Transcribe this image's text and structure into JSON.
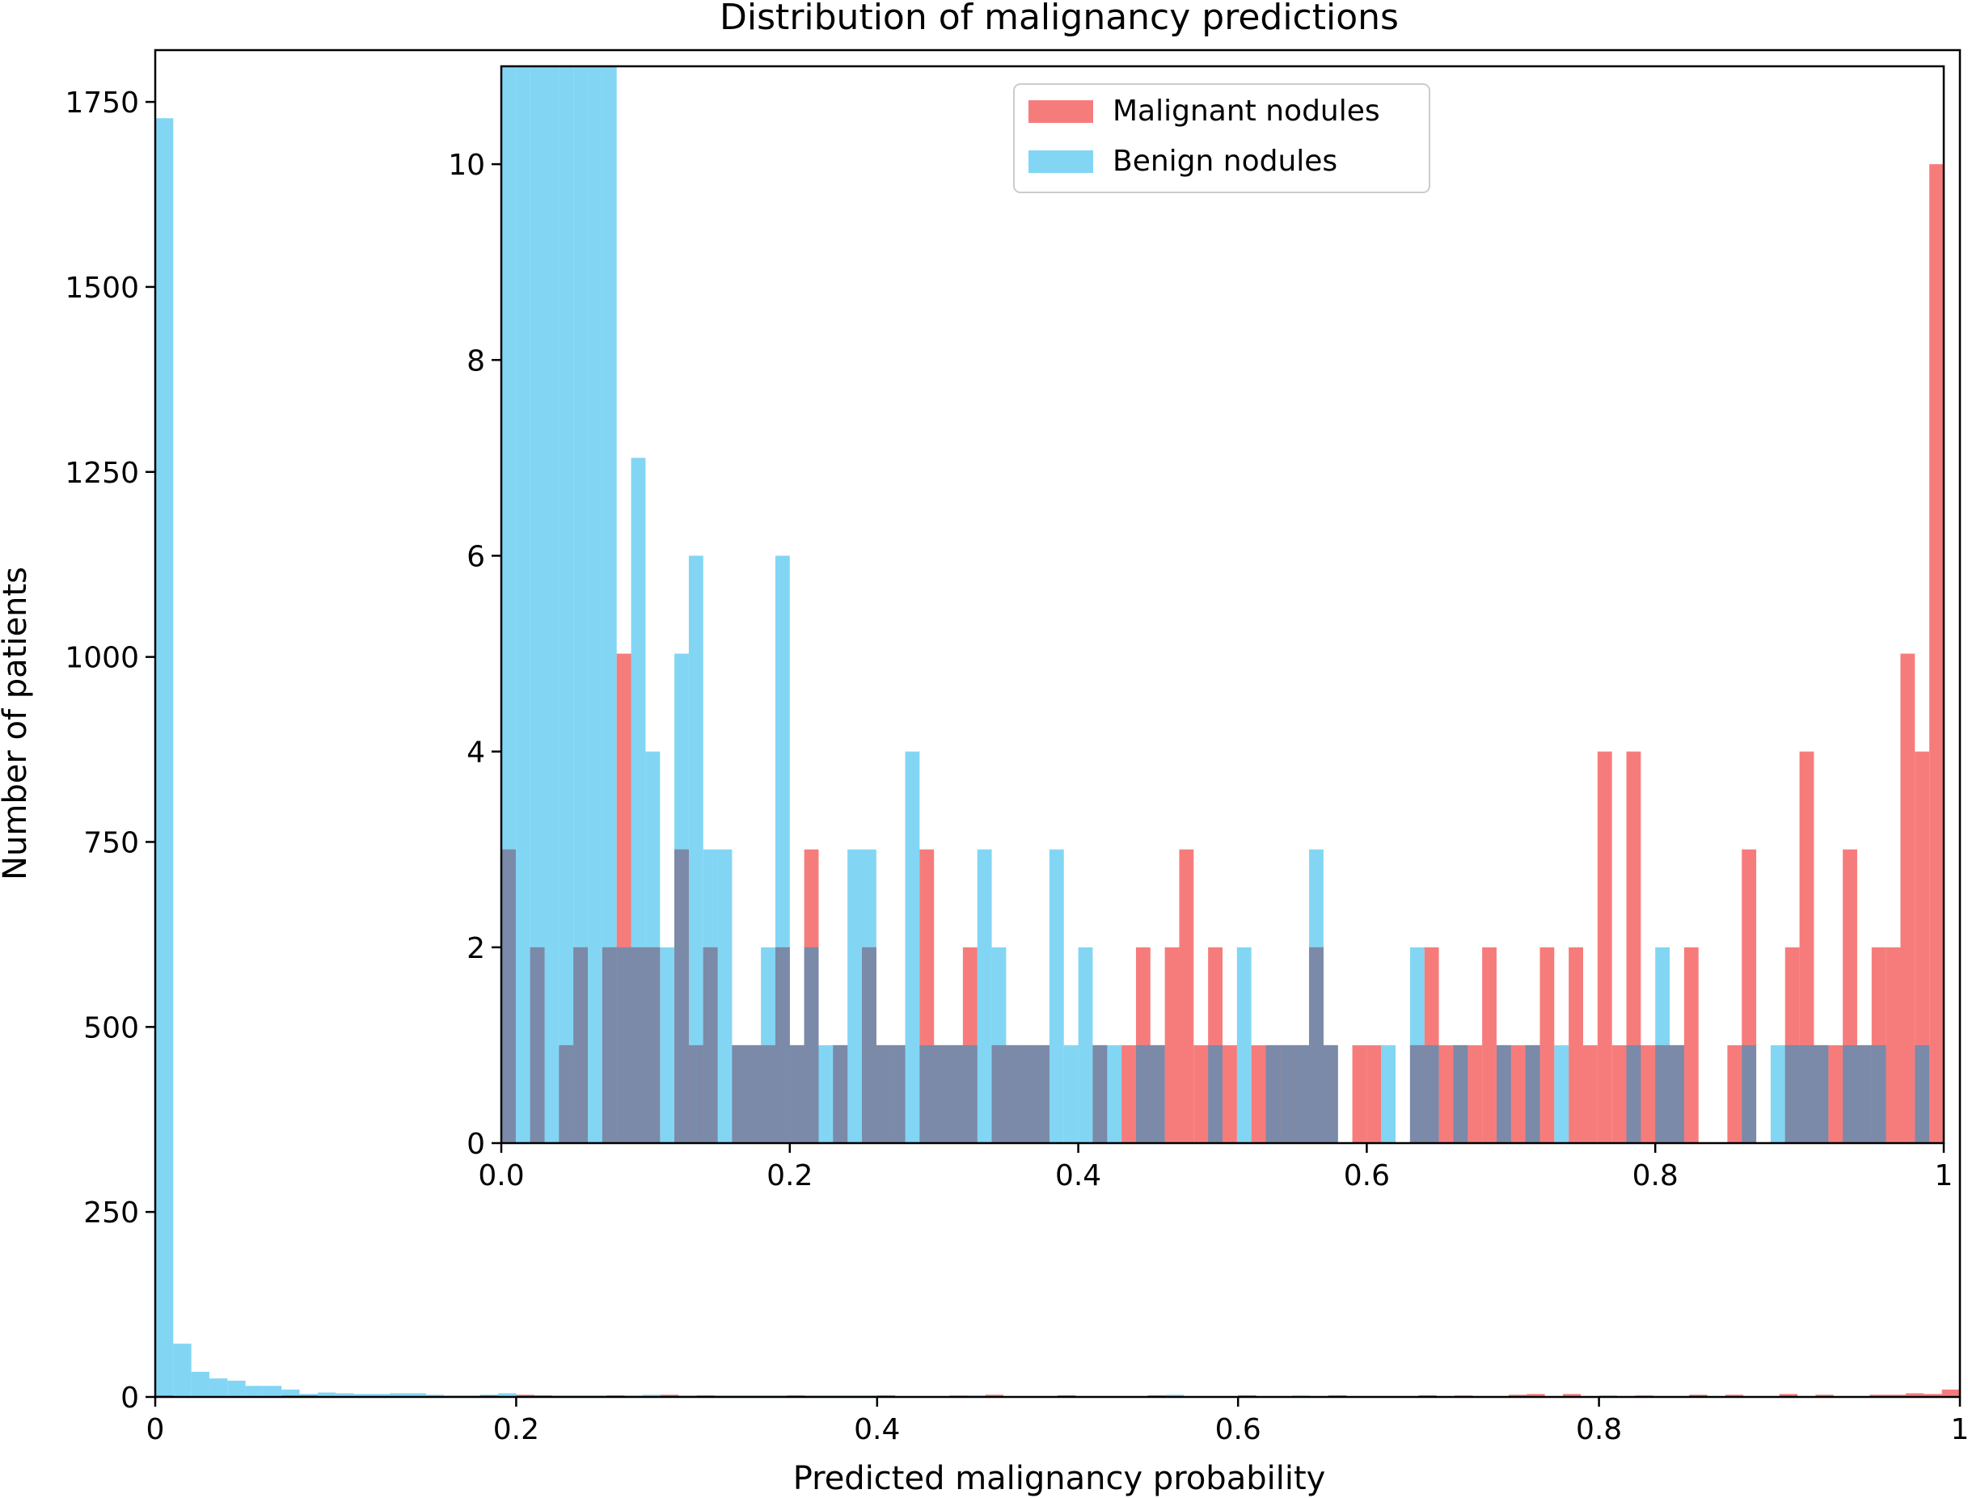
{
  "chart_data": [
    {
      "type": "bar",
      "role": "main",
      "title": "Distribution of malignancy predictions",
      "xlabel": "Predicted malignancy probability",
      "ylabel": "Number of patients",
      "xlim": [
        0,
        1
      ],
      "ylim": [
        0,
        1820
      ],
      "xticks": [
        0,
        0.2,
        0.4,
        0.6,
        0.8,
        1
      ],
      "xtick_labels": [
        "0",
        "0.2",
        "0.4",
        "0.6",
        "0.8",
        "1"
      ],
      "yticks": [
        0,
        250,
        500,
        750,
        1000,
        1250,
        1500,
        1750
      ],
      "ytick_labels": [
        "0",
        "250",
        "500",
        "750",
        "1000",
        "1250",
        "1500",
        "1750"
      ],
      "grid": false,
      "bin_width": 0.01,
      "series": [
        {
          "name": "Benign nodules",
          "color": "#6ccff2",
          "bins": [
            [
              0.0,
              1728
            ],
            [
              0.01,
              72
            ],
            [
              0.02,
              34
            ],
            [
              0.03,
              25
            ],
            [
              0.04,
              22
            ],
            [
              0.05,
              15
            ],
            [
              0.06,
              15
            ],
            [
              0.07,
              10
            ],
            [
              0.08,
              4
            ],
            [
              0.09,
              6
            ],
            [
              0.1,
              5
            ],
            [
              0.11,
              4
            ],
            [
              0.12,
              4
            ],
            [
              0.13,
              5
            ],
            [
              0.14,
              5
            ],
            [
              0.15,
              3
            ],
            [
              0.16,
              2
            ],
            [
              0.17,
              2
            ],
            [
              0.18,
              3
            ],
            [
              0.19,
              5
            ],
            [
              0.2,
              2
            ],
            [
              0.21,
              2
            ],
            [
              0.22,
              2
            ],
            [
              0.23,
              2
            ],
            [
              0.24,
              2
            ],
            [
              0.25,
              2
            ],
            [
              0.26,
              2
            ],
            [
              0.27,
              3
            ],
            [
              0.28,
              2
            ],
            [
              0.29,
              2
            ],
            [
              0.3,
              2
            ],
            [
              0.31,
              2
            ],
            [
              0.32,
              2
            ],
            [
              0.33,
              2
            ],
            [
              0.34,
              2
            ],
            [
              0.35,
              2
            ],
            [
              0.36,
              2
            ],
            [
              0.37,
              2
            ],
            [
              0.38,
              2
            ],
            [
              0.39,
              2
            ],
            [
              0.4,
              2
            ],
            [
              0.45,
              2
            ],
            [
              0.5,
              2
            ],
            [
              0.55,
              2
            ],
            [
              0.56,
              3
            ],
            [
              0.6,
              2
            ],
            [
              0.63,
              2
            ],
            [
              0.65,
              2
            ],
            [
              0.7,
              2
            ],
            [
              0.8,
              2
            ],
            [
              0.85,
              2
            ],
            [
              0.9,
              2
            ]
          ]
        },
        {
          "name": "Malignant nodules",
          "color": "#f56565",
          "bins": [
            [
              0.0,
              2
            ],
            [
              0.07,
              2
            ],
            [
              0.08,
              2
            ],
            [
              0.18,
              2
            ],
            [
              0.2,
              3
            ],
            [
              0.21,
              2
            ],
            [
              0.25,
              2
            ],
            [
              0.28,
              3
            ],
            [
              0.3,
              2
            ],
            [
              0.35,
              2
            ],
            [
              0.4,
              2
            ],
            [
              0.44,
              2
            ],
            [
              0.46,
              3
            ],
            [
              0.5,
              2
            ],
            [
              0.55,
              2
            ],
            [
              0.6,
              2
            ],
            [
              0.65,
              2
            ],
            [
              0.7,
              2
            ],
            [
              0.72,
              2
            ],
            [
              0.75,
              3
            ],
            [
              0.76,
              4
            ],
            [
              0.78,
              4
            ],
            [
              0.82,
              2
            ],
            [
              0.85,
              3
            ],
            [
              0.87,
              3
            ],
            [
              0.9,
              4
            ],
            [
              0.92,
              3
            ],
            [
              0.95,
              3
            ],
            [
              0.96,
              3
            ],
            [
              0.97,
              5
            ],
            [
              0.98,
              4
            ],
            [
              0.99,
              10
            ]
          ]
        }
      ]
    },
    {
      "type": "bar",
      "role": "inset",
      "xlim": [
        0,
        1
      ],
      "ylim": [
        0,
        11
      ],
      "xticks": [
        0,
        0.2,
        0.4,
        0.6,
        0.8,
        1
      ],
      "xtick_labels": [
        "0.0",
        "0.2",
        "0.4",
        "0.6",
        "0.8",
        "1"
      ],
      "yticks": [
        0,
        2,
        4,
        6,
        8,
        10
      ],
      "ytick_labels": [
        "0",
        "2",
        "4",
        "6",
        "8",
        "10"
      ],
      "legend": {
        "placement": "upper-center",
        "entries": [
          {
            "label": "Malignant nodules",
            "color": "#f56565"
          },
          {
            "label": "Benign nodules",
            "color": "#6ccff2"
          }
        ]
      },
      "bin_width": 0.01,
      "series": [
        {
          "name": "Benign nodules",
          "color": "#6ccff2",
          "bins": [
            [
              0.0,
              12
            ],
            [
              0.01,
              12
            ],
            [
              0.02,
              12
            ],
            [
              0.03,
              12
            ],
            [
              0.04,
              12
            ],
            [
              0.05,
              12
            ],
            [
              0.06,
              12
            ],
            [
              0.07,
              12
            ],
            [
              0.08,
              2
            ],
            [
              0.09,
              7
            ],
            [
              0.1,
              4
            ],
            [
              0.11,
              2
            ],
            [
              0.12,
              5
            ],
            [
              0.13,
              6
            ],
            [
              0.14,
              3
            ],
            [
              0.15,
              3
            ],
            [
              0.16,
              1
            ],
            [
              0.17,
              1
            ],
            [
              0.18,
              2
            ],
            [
              0.19,
              6
            ],
            [
              0.2,
              1
            ],
            [
              0.21,
              2
            ],
            [
              0.22,
              1
            ],
            [
              0.23,
              1
            ],
            [
              0.24,
              3
            ],
            [
              0.25,
              3
            ],
            [
              0.26,
              1
            ],
            [
              0.27,
              1
            ],
            [
              0.28,
              4
            ],
            [
              0.29,
              1
            ],
            [
              0.3,
              1
            ],
            [
              0.31,
              1
            ],
            [
              0.32,
              1
            ],
            [
              0.33,
              3
            ],
            [
              0.34,
              2
            ],
            [
              0.35,
              1
            ],
            [
              0.36,
              1
            ],
            [
              0.37,
              1
            ],
            [
              0.38,
              3
            ],
            [
              0.39,
              1
            ],
            [
              0.4,
              2
            ],
            [
              0.41,
              1
            ],
            [
              0.42,
              1
            ],
            [
              0.44,
              1
            ],
            [
              0.45,
              1
            ],
            [
              0.49,
              1
            ],
            [
              0.51,
              2
            ],
            [
              0.53,
              1
            ],
            [
              0.54,
              1
            ],
            [
              0.55,
              1
            ],
            [
              0.56,
              3
            ],
            [
              0.57,
              1
            ],
            [
              0.61,
              1
            ],
            [
              0.63,
              2
            ],
            [
              0.64,
              1
            ],
            [
              0.66,
              1
            ],
            [
              0.69,
              1
            ],
            [
              0.71,
              1
            ],
            [
              0.73,
              1
            ],
            [
              0.78,
              1
            ],
            [
              0.8,
              2
            ],
            [
              0.81,
              1
            ],
            [
              0.86,
              1
            ],
            [
              0.88,
              1
            ],
            [
              0.89,
              1
            ],
            [
              0.9,
              1
            ],
            [
              0.91,
              1
            ],
            [
              0.93,
              1
            ],
            [
              0.94,
              1
            ],
            [
              0.95,
              1
            ],
            [
              0.98,
              1
            ]
          ]
        },
        {
          "name": "Malignant nodules",
          "color": "#f56565",
          "bins": [
            [
              0.0,
              3
            ],
            [
              0.02,
              2
            ],
            [
              0.04,
              1
            ],
            [
              0.05,
              2
            ],
            [
              0.07,
              2
            ],
            [
              0.08,
              5
            ],
            [
              0.09,
              2
            ],
            [
              0.1,
              2
            ],
            [
              0.12,
              3
            ],
            [
              0.13,
              1
            ],
            [
              0.14,
              2
            ],
            [
              0.16,
              1
            ],
            [
              0.17,
              1
            ],
            [
              0.18,
              1
            ],
            [
              0.19,
              2
            ],
            [
              0.2,
              1
            ],
            [
              0.21,
              3
            ],
            [
              0.23,
              1
            ],
            [
              0.25,
              2
            ],
            [
              0.26,
              1
            ],
            [
              0.27,
              1
            ],
            [
              0.29,
              3
            ],
            [
              0.3,
              1
            ],
            [
              0.31,
              1
            ],
            [
              0.32,
              2
            ],
            [
              0.34,
              1
            ],
            [
              0.35,
              1
            ],
            [
              0.36,
              1
            ],
            [
              0.37,
              1
            ],
            [
              0.41,
              1
            ],
            [
              0.43,
              1
            ],
            [
              0.44,
              2
            ],
            [
              0.45,
              1
            ],
            [
              0.46,
              2
            ],
            [
              0.47,
              3
            ],
            [
              0.48,
              1
            ],
            [
              0.49,
              2
            ],
            [
              0.5,
              1
            ],
            [
              0.52,
              1
            ],
            [
              0.53,
              1
            ],
            [
              0.54,
              1
            ],
            [
              0.55,
              1
            ],
            [
              0.56,
              2
            ],
            [
              0.57,
              1
            ],
            [
              0.59,
              1
            ],
            [
              0.6,
              1
            ],
            [
              0.63,
              1
            ],
            [
              0.64,
              2
            ],
            [
              0.65,
              1
            ],
            [
              0.66,
              1
            ],
            [
              0.67,
              1
            ],
            [
              0.68,
              2
            ],
            [
              0.69,
              1
            ],
            [
              0.7,
              1
            ],
            [
              0.71,
              1
            ],
            [
              0.72,
              2
            ],
            [
              0.74,
              2
            ],
            [
              0.75,
              1
            ],
            [
              0.76,
              4
            ],
            [
              0.77,
              1
            ],
            [
              0.78,
              4
            ],
            [
              0.79,
              1
            ],
            [
              0.8,
              1
            ],
            [
              0.81,
              1
            ],
            [
              0.82,
              2
            ],
            [
              0.85,
              1
            ],
            [
              0.86,
              3
            ],
            [
              0.89,
              2
            ],
            [
              0.9,
              4
            ],
            [
              0.91,
              1
            ],
            [
              0.92,
              1
            ],
            [
              0.93,
              3
            ],
            [
              0.94,
              1
            ],
            [
              0.95,
              2
            ],
            [
              0.96,
              2
            ],
            [
              0.97,
              5
            ],
            [
              0.98,
              4
            ],
            [
              0.99,
              10
            ]
          ]
        }
      ]
    }
  ]
}
